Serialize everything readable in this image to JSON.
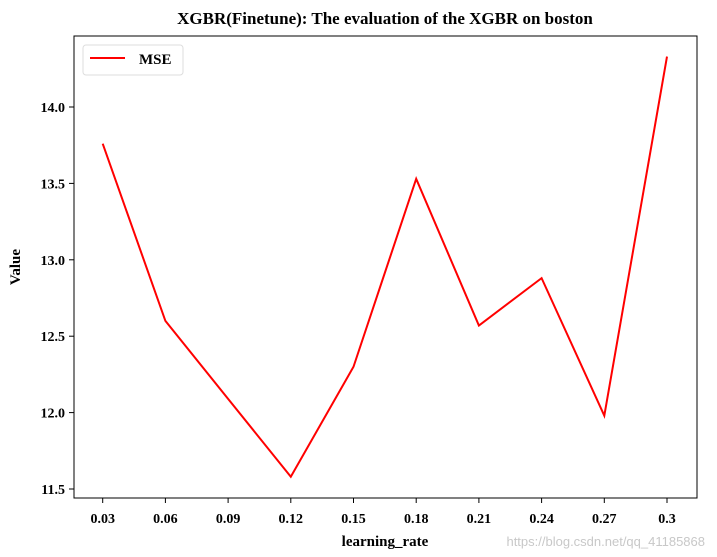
{
  "chart_data": {
    "type": "line",
    "title": "XGBR(Finetune): The evaluation of the XGBR on boston",
    "xlabel": "learning_rate",
    "ylabel": "Value",
    "x": [
      "0.03",
      "0.06",
      "0.09",
      "0.12",
      "0.15",
      "0.18",
      "0.21",
      "0.24",
      "0.27",
      "0.3"
    ],
    "series": [
      {
        "name": "MSE",
        "color": "#ff0000",
        "values": [
          13.76,
          12.6,
          12.09,
          11.58,
          12.3,
          13.53,
          12.57,
          12.88,
          11.98,
          14.33
        ]
      }
    ],
    "yticks": [
      "11.5",
      "12.0",
      "12.5",
      "13.0",
      "13.5",
      "14.0"
    ],
    "ylim": [
      11.44,
      14.72
    ],
    "grid": false,
    "legend": "top-left"
  },
  "watermark": "https://blog.csdn.net/qq_41185868"
}
